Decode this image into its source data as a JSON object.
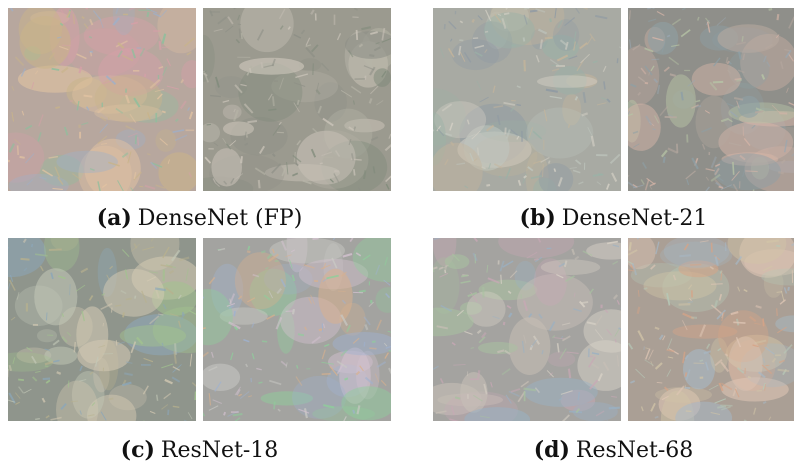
{
  "figure": {
    "panels": [
      {
        "label": "(a)",
        "caption": "DenseNet (FP)",
        "images": [
          {
            "subject": "feature-visualization-1",
            "base": "#b7a79e",
            "accents": [
              "#d6a0a8",
              "#9fb0c9",
              "#c9b48a",
              "#8fbf9d",
              "#e2c3a2"
            ]
          },
          {
            "subject": "feature-visualization-2",
            "base": "#9b9a8f",
            "accents": [
              "#b7b5a8",
              "#8d8f86",
              "#c7c0b6",
              "#7f8a7a",
              "#d0c9be"
            ]
          }
        ]
      },
      {
        "label": "(b)",
        "caption": "DenseNet-21",
        "images": [
          {
            "subject": "feature-visualization-1",
            "base": "#a8aaa3",
            "accents": [
              "#c0c7bf",
              "#8f9aa4",
              "#c5b59b",
              "#9bb2a7",
              "#d5d1c6"
            ]
          },
          {
            "subject": "feature-visualization-2",
            "base": "#8f8f8a",
            "accents": [
              "#b7a9a0",
              "#9aa7b1",
              "#b6c3a5",
              "#d6b5a8",
              "#8ea0a6"
            ]
          }
        ]
      },
      {
        "label": "(c)",
        "caption": "ResNet-18",
        "images": [
          {
            "subject": "feature-visualization-1",
            "base": "#8f958c",
            "accents": [
              "#c2c8b7",
              "#8ca7b9",
              "#b8b18e",
              "#a2c38f",
              "#d3c9b3"
            ]
          },
          {
            "subject": "feature-visualization-2",
            "base": "#a3a3a0",
            "accents": [
              "#c9c9c4",
              "#9fb2d0",
              "#d8b18e",
              "#8fcf9b",
              "#d6c3d2"
            ]
          }
        ]
      },
      {
        "label": "(d)",
        "caption": "ResNet-68",
        "images": [
          {
            "subject": "feature-visualization-1",
            "base": "#a4a3a0",
            "accents": [
              "#c7bfb6",
              "#9ab1c4",
              "#c9a8b6",
              "#a8c2a0",
              "#d9d2c7"
            ]
          },
          {
            "subject": "feature-visualization-2",
            "base": "#aa9f95",
            "accents": [
              "#d7a487",
              "#a7b9c7",
              "#d2c5a8",
              "#b7c9b8",
              "#e0c7b6"
            ]
          }
        ]
      }
    ]
  }
}
